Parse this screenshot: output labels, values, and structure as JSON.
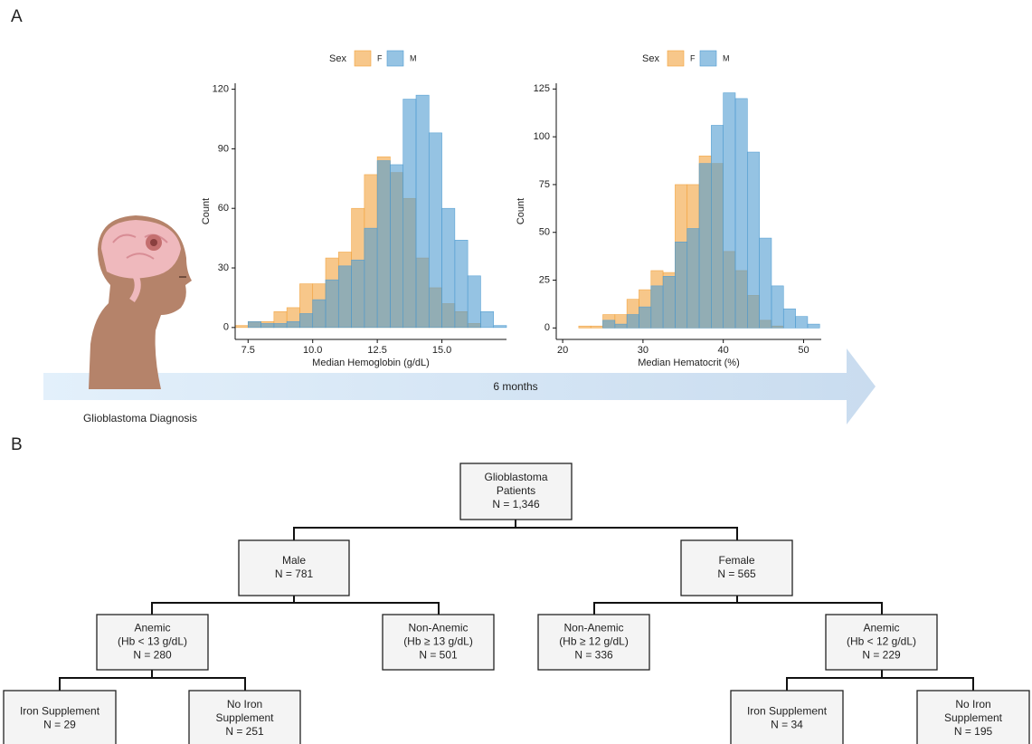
{
  "panel_labels": [
    "A",
    "B"
  ],
  "chart_data": [
    {
      "type": "histogram",
      "x_label": "Median Hemoglobin (g/dL)",
      "y_label": "Count",
      "legend_title": "Sex",
      "bins": [
        7.0,
        7.5,
        8.0,
        8.5,
        9.0,
        9.5,
        10.0,
        10.5,
        11.0,
        11.5,
        12.0,
        12.5,
        13.0,
        13.5,
        14.0,
        14.5,
        15.0,
        15.5,
        16.0,
        16.5,
        17.0,
        17.5
      ],
      "series": [
        {
          "name": "F",
          "color": "#f2a23c",
          "values": [
            1,
            3,
            3,
            8,
            10,
            22,
            22,
            35,
            38,
            60,
            77,
            86,
            78,
            65,
            35,
            20,
            12,
            8,
            2,
            0,
            0
          ]
        },
        {
          "name": "M",
          "color": "#4f9bd0",
          "values": [
            0,
            3,
            2,
            2,
            3,
            7,
            14,
            24,
            31,
            34,
            50,
            84,
            82,
            115,
            117,
            98,
            60,
            44,
            26,
            8,
            1
          ]
        }
      ],
      "alpha": 0.6,
      "xlim": [
        7.0,
        17.5
      ],
      "ylim": [
        -6,
        123
      ],
      "xticks": [
        7.5,
        {
          "value": 10,
          "label": "10.0"
        },
        12.5,
        {
          "value": 15,
          "label": "15.0"
        }
      ],
      "yticks": [
        0,
        30,
        60,
        90,
        120
      ]
    },
    {
      "type": "histogram",
      "x_label": "Median Hematocrit (%)",
      "y_label": "Count",
      "legend_title": "Sex",
      "bins": [
        22,
        23.5,
        25,
        26.5,
        28,
        29.5,
        31,
        32.5,
        34,
        35.5,
        37,
        38.5,
        40,
        41.5,
        43,
        44.5,
        46,
        47.5,
        49,
        50.5,
        52
      ],
      "series": [
        {
          "name": "F",
          "color": "#f2a23c",
          "values": [
            1,
            1,
            7,
            7,
            15,
            20,
            30,
            29,
            75,
            75,
            90,
            86,
            40,
            30,
            17,
            4,
            1,
            0,
            0,
            0
          ]
        },
        {
          "name": "M",
          "color": "#4f9bd0",
          "values": [
            0,
            0,
            4,
            2,
            7,
            11,
            22,
            27,
            45,
            52,
            86,
            106,
            123,
            120,
            92,
            47,
            22,
            10,
            6,
            2
          ]
        }
      ],
      "alpha": 0.6,
      "xlim": [
        19.2,
        52.2
      ],
      "ylim": [
        -6,
        128
      ],
      "xticks": [
        20,
        30,
        40,
        50
      ],
      "yticks": [
        0,
        25,
        50,
        75,
        100,
        125
      ]
    }
  ],
  "timeline": {
    "label": "6 months",
    "caption": "Glioblastoma Diagnosis"
  },
  "tree": {
    "nodes": [
      {
        "lines": [
          "Glioblastoma",
          "Patients",
          "N = 1,346"
        ]
      },
      {
        "lines": [
          "Male",
          "N = 781"
        ]
      },
      {
        "lines": [
          "Female",
          "N = 565"
        ]
      },
      {
        "lines": [
          "Anemic",
          "(Hb < 13 g/dL)",
          "N = 280"
        ]
      },
      {
        "lines": [
          "Non-Anemic",
          "(Hb ≥ 13 g/dL)",
          "N = 501"
        ]
      },
      {
        "lines": [
          "Non-Anemic",
          "(Hb ≥ 12 g/dL)",
          "N = 336"
        ]
      },
      {
        "lines": [
          "Anemic",
          "(Hb < 12 g/dL)",
          "N = 229"
        ]
      },
      {
        "lines": [
          "Iron Supplement",
          "N = 29"
        ]
      },
      {
        "lines": [
          "No Iron",
          "Supplement",
          "N = 251"
        ]
      },
      {
        "lines": [
          "Iron Supplement",
          "N = 34"
        ]
      },
      {
        "lines": [
          "No Iron",
          "Supplement",
          "N = 195"
        ]
      }
    ]
  }
}
